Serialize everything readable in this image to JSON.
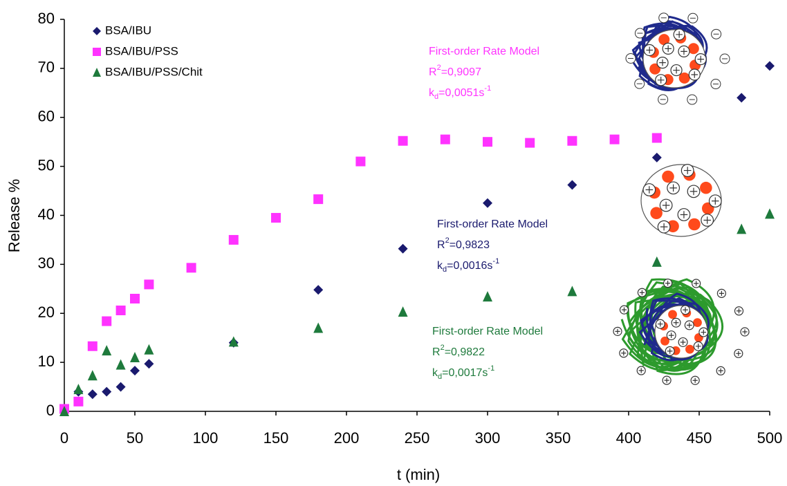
{
  "chart_data": {
    "type": "scatter",
    "x_label": "t (min)",
    "y_label": "Release %",
    "xlim": [
      0,
      500
    ],
    "ylim": [
      0,
      80
    ],
    "xticks": [
      0,
      50,
      100,
      150,
      200,
      250,
      300,
      350,
      400,
      450,
      500
    ],
    "yticks": [
      0,
      10,
      20,
      30,
      40,
      50,
      60,
      70,
      80
    ],
    "series": [
      {
        "name": "BSA/IBU",
        "color": "#1a1a6e",
        "marker": "diamond",
        "x": [
          0,
          10,
          20,
          30,
          40,
          50,
          60,
          120,
          180,
          240,
          300,
          360,
          420,
          480,
          500
        ],
        "values": [
          0,
          4,
          3.5,
          4,
          5,
          8.3,
          9.7,
          14,
          24.8,
          33.2,
          42.5,
          46.2,
          51.8,
          64,
          70.5
        ]
      },
      {
        "name": "BSA/IBU/PSS",
        "color": "#ff33ff",
        "marker": "square",
        "x": [
          0,
          10,
          20,
          30,
          40,
          50,
          60,
          90,
          120,
          150,
          180,
          210,
          240,
          270,
          300,
          330,
          360,
          390,
          420
        ],
        "values": [
          0.5,
          2,
          13.3,
          18.4,
          20.6,
          23,
          25.9,
          29.3,
          35,
          39.5,
          43.3,
          51,
          55.2,
          55.5,
          55,
          54.8,
          55.2,
          55.5,
          55.8
        ]
      },
      {
        "name": "BSA/IBU/PSS/Chit",
        "color": "#1e7a3c",
        "marker": "triangle",
        "x": [
          0,
          10,
          20,
          30,
          40,
          50,
          60,
          120,
          180,
          240,
          300,
          360,
          420,
          480,
          500
        ],
        "values": [
          0,
          4.5,
          7.3,
          12.4,
          9.5,
          11,
          12.6,
          14.2,
          17,
          20.3,
          23.4,
          24.5,
          30.5,
          37.2,
          40.3
        ]
      }
    ],
    "annotations": [
      {
        "title": "First-order Rate Model",
        "r": "R",
        "r_sup": "2",
        "r_value": "=0,9097",
        "k": "k",
        "k_sub": "d",
        "k_value": "=0,0051s",
        "k_sup": "-1",
        "color": "#ff33ff"
      },
      {
        "title": "First-order Rate Model",
        "r": "R",
        "r_sup": "2",
        "r_value": "=0,9823",
        "k": "k",
        "k_sub": "d",
        "k_value": "=0,0016s",
        "k_sup": "-1",
        "color": "#1a1a6e"
      },
      {
        "title": "First-order Rate Model",
        "r": "R",
        "r_sup": "2",
        "r_value": "=0,9822",
        "k": "k",
        "k_sub": "d",
        "k_value": "=0,0017s",
        "k_sup": "-1",
        "color": "#1e7a3c"
      }
    ]
  }
}
